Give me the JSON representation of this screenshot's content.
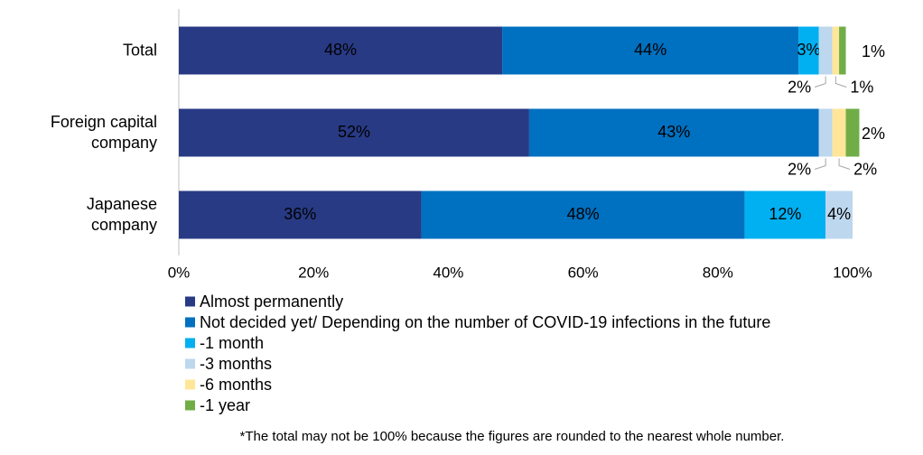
{
  "chart_data": {
    "type": "stacked-barh",
    "categories": [
      "Total",
      "Foreign capital\ncompany",
      "Japanese\ncompany"
    ],
    "series": [
      {
        "name": "Almost permanently",
        "color": "#283a84",
        "values": [
          48,
          52,
          36
        ],
        "value_labels": [
          "48%",
          "52%",
          "36%"
        ]
      },
      {
        "name": "Not decided yet/ Depending on the number of  COVID-19 infections in the future",
        "color": "#0070c0",
        "values": [
          44,
          43,
          48
        ],
        "value_labels": [
          "44%",
          "43%",
          "48%"
        ]
      },
      {
        "name": "-1 month",
        "color": "#00b0f0",
        "values": [
          3,
          null,
          12
        ],
        "value_labels": [
          "3%",
          null,
          "12%"
        ]
      },
      {
        "name": "-3 months",
        "color": "#bdd7ee",
        "values": [
          2,
          2,
          4
        ],
        "value_labels": [
          "2%",
          "2%",
          "4%"
        ]
      },
      {
        "name": "-6 months",
        "color": "#ffe699",
        "values": [
          1,
          2,
          null
        ],
        "value_labels": [
          "1%",
          "2%",
          null
        ]
      },
      {
        "name": "-1 year",
        "color": "#70ad47",
        "values": [
          1,
          2,
          null
        ],
        "value_labels": [
          "1%",
          "2%",
          null
        ]
      }
    ],
    "xlim": [
      0,
      100
    ],
    "xticks": [
      {
        "value": 0,
        "label": "0%"
      },
      {
        "value": 20,
        "label": "20%"
      },
      {
        "value": 40,
        "label": "40%"
      },
      {
        "value": 60,
        "label": "60%"
      },
      {
        "value": 80,
        "label": "80%"
      },
      {
        "value": 100,
        "label": "100%"
      }
    ],
    "note": "*The total may not be 100% because the figures are rounded to the nearest whole number."
  }
}
